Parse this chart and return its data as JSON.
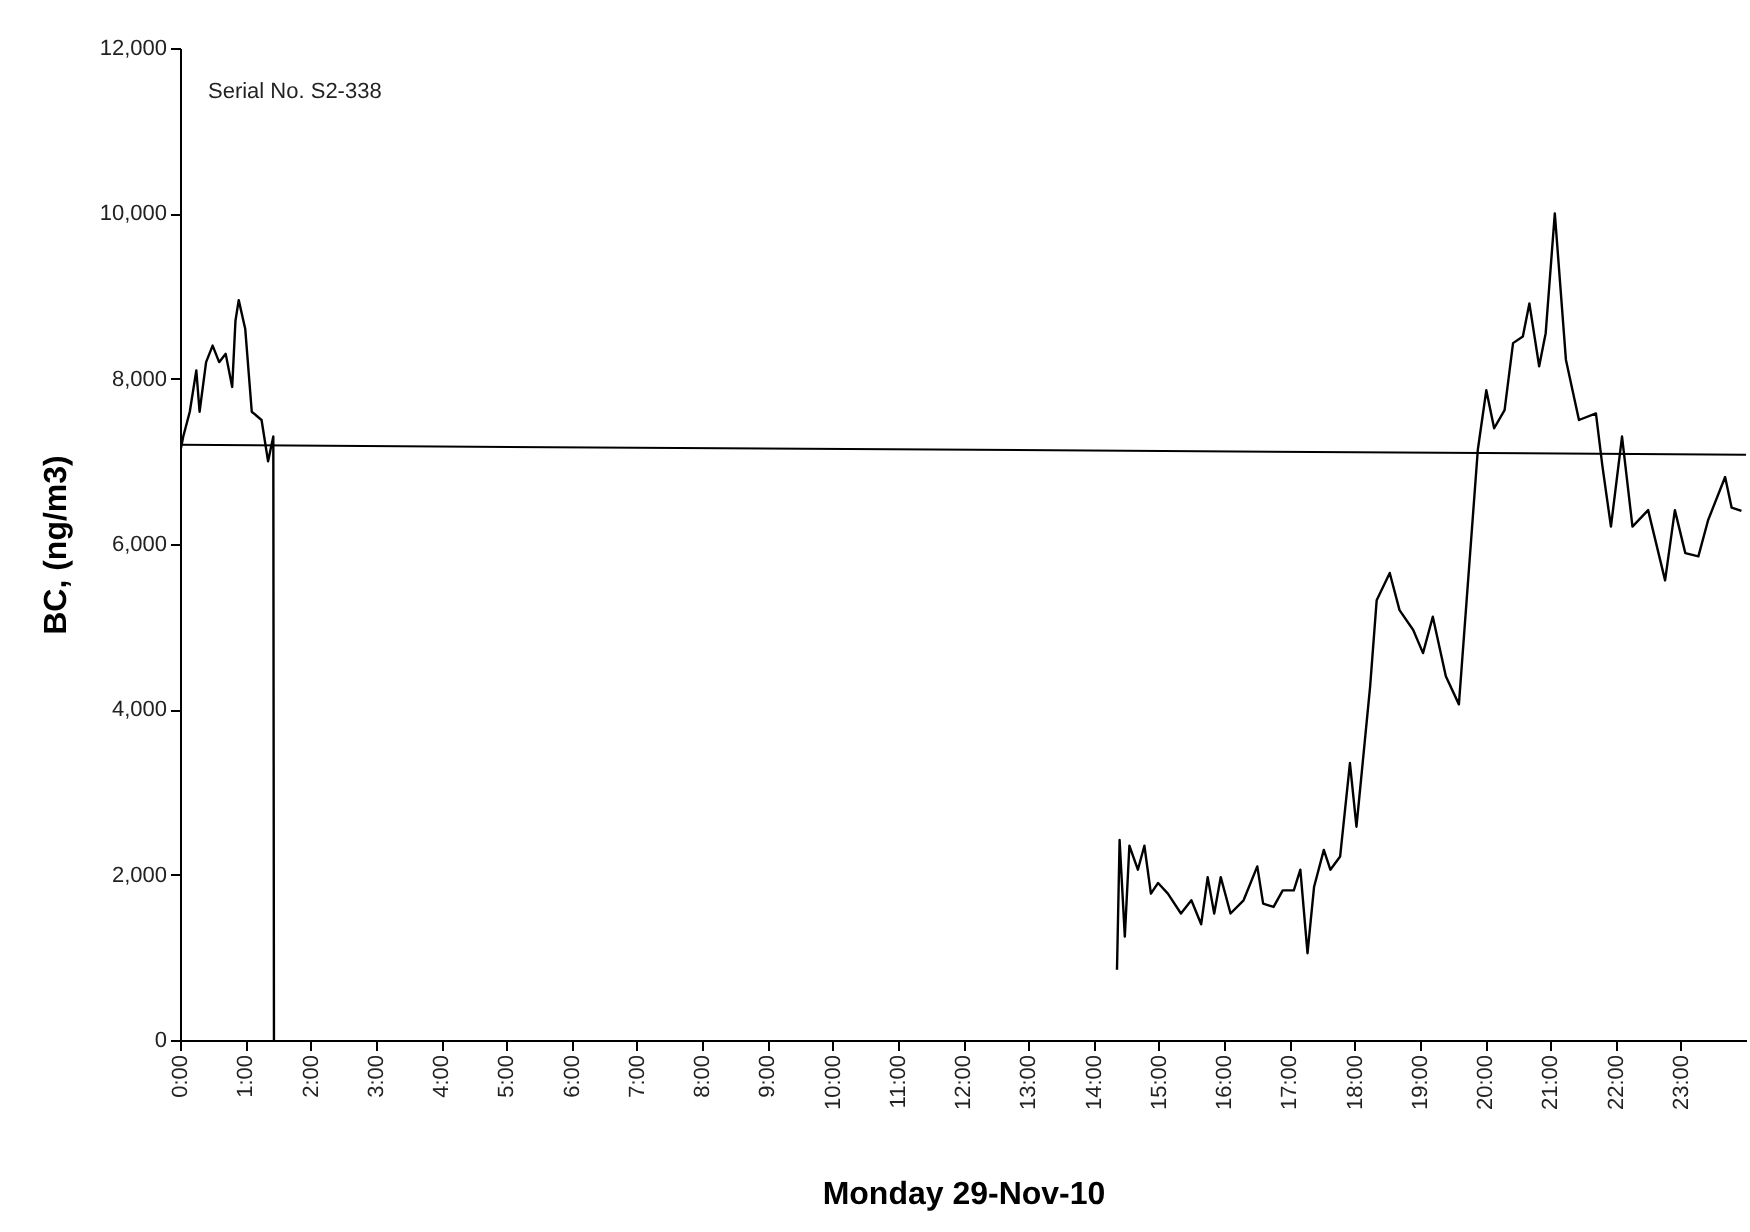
{
  "chart_data": {
    "type": "line",
    "xlabel": "Monday      29-Nov-10",
    "ylabel": "BC, (ng/m3)",
    "annotations": [
      "Serial No. S2-338"
    ],
    "xlim": [
      0,
      24
    ],
    "ylim": [
      0,
      12000
    ],
    "xticks": [
      {
        "value": 0,
        "label": "0:00"
      },
      {
        "value": 1,
        "label": "1:00"
      },
      {
        "value": 2,
        "label": "2:00"
      },
      {
        "value": 3,
        "label": "3:00"
      },
      {
        "value": 4,
        "label": "4:00"
      },
      {
        "value": 5,
        "label": "5:00"
      },
      {
        "value": 6,
        "label": "6:00"
      },
      {
        "value": 7,
        "label": "7:00"
      },
      {
        "value": 8,
        "label": "8:00"
      },
      {
        "value": 9,
        "label": "9:00"
      },
      {
        "value": 10,
        "label": "10:00"
      },
      {
        "value": 11,
        "label": "11:00"
      },
      {
        "value": 12,
        "label": "12:00"
      },
      {
        "value": 13,
        "label": "13:00"
      },
      {
        "value": 14,
        "label": "14:00"
      },
      {
        "value": 15,
        "label": "15:00"
      },
      {
        "value": 16,
        "label": "16:00"
      },
      {
        "value": 17,
        "label": "17:00"
      },
      {
        "value": 18,
        "label": "18:00"
      },
      {
        "value": 19,
        "label": "19:00"
      },
      {
        "value": 20,
        "label": "20:00"
      },
      {
        "value": 21,
        "label": "21:00"
      },
      {
        "value": 22,
        "label": "22:00"
      },
      {
        "value": 23,
        "label": "23:00"
      }
    ],
    "yticks": [
      0,
      {
        "value": 2000,
        "label": "2,000"
      },
      {
        "value": 4000,
        "label": "4,000"
      },
      {
        "value": 6000,
        "label": "6,000"
      },
      {
        "value": 8000,
        "label": "8,000"
      },
      {
        "value": 10000,
        "label": "10,000"
      },
      {
        "value": 12000,
        "label": "12,000"
      }
    ],
    "line_style": "solid",
    "series": [
      {
        "color": "#000000",
        "x": [
          0.0,
          0.05,
          0.15,
          0.25,
          0.3,
          0.4,
          0.5,
          0.6,
          0.7,
          0.8,
          0.85,
          0.9,
          1.0,
          1.1,
          1.25,
          1.35,
          1.43,
          1.44,
          1.45,
          14.36,
          14.4,
          14.48,
          14.55,
          14.68,
          14.78,
          14.88,
          14.99,
          15.14,
          15.34,
          15.5,
          15.65,
          15.75,
          15.85,
          15.95,
          16.1,
          16.3,
          16.51,
          16.6,
          16.76,
          16.9,
          17.07,
          17.17,
          17.28,
          17.38,
          17.53,
          17.63,
          17.78,
          17.93,
          18.03,
          18.24,
          18.34,
          18.54,
          18.69,
          18.9,
          19.05,
          19.2,
          19.4,
          19.6,
          19.89,
          20.02,
          20.14,
          20.3,
          20.43,
          20.58,
          20.68,
          20.83,
          20.93,
          21.07,
          21.24,
          21.44,
          21.7,
          21.8,
          21.93,
          22.1,
          22.26,
          22.5,
          22.76,
          22.91,
          23.07,
          23.27,
          23.42,
          23.68,
          23.78,
          23.93
        ],
        "values": [
          7100,
          7300,
          7600,
          8100,
          7600,
          8200,
          8400,
          8200,
          8300,
          7900,
          8700,
          8950,
          8600,
          7600,
          7500,
          7000,
          7300,
          0,
          null,
          850,
          2420,
          1250,
          2350,
          2060,
          2350,
          1770,
          1900,
          1770,
          1530,
          1690,
          1400,
          1970,
          1530,
          1970,
          1530,
          1690,
          2100,
          1650,
          1610,
          1810,
          1810,
          2060,
          1050,
          1850,
          2300,
          2060,
          2220,
          3350,
          2580,
          4280,
          5320,
          5650,
          5200,
          4960,
          4680,
          5120,
          4400,
          4060,
          7140,
          7860,
          7400,
          7620,
          8430,
          8510,
          8910,
          8150,
          8550,
          10000,
          8230,
          7500,
          7580,
          6940,
          6210,
          7300,
          6210,
          6410,
          5560,
          6410,
          5890,
          5850,
          6290,
          6810,
          6440,
          6400
        ]
      },
      {
        "type": "line",
        "color": "#000000",
        "x": [
          0,
          24
        ],
        "values": [
          7200,
          7080
        ]
      }
    ]
  }
}
